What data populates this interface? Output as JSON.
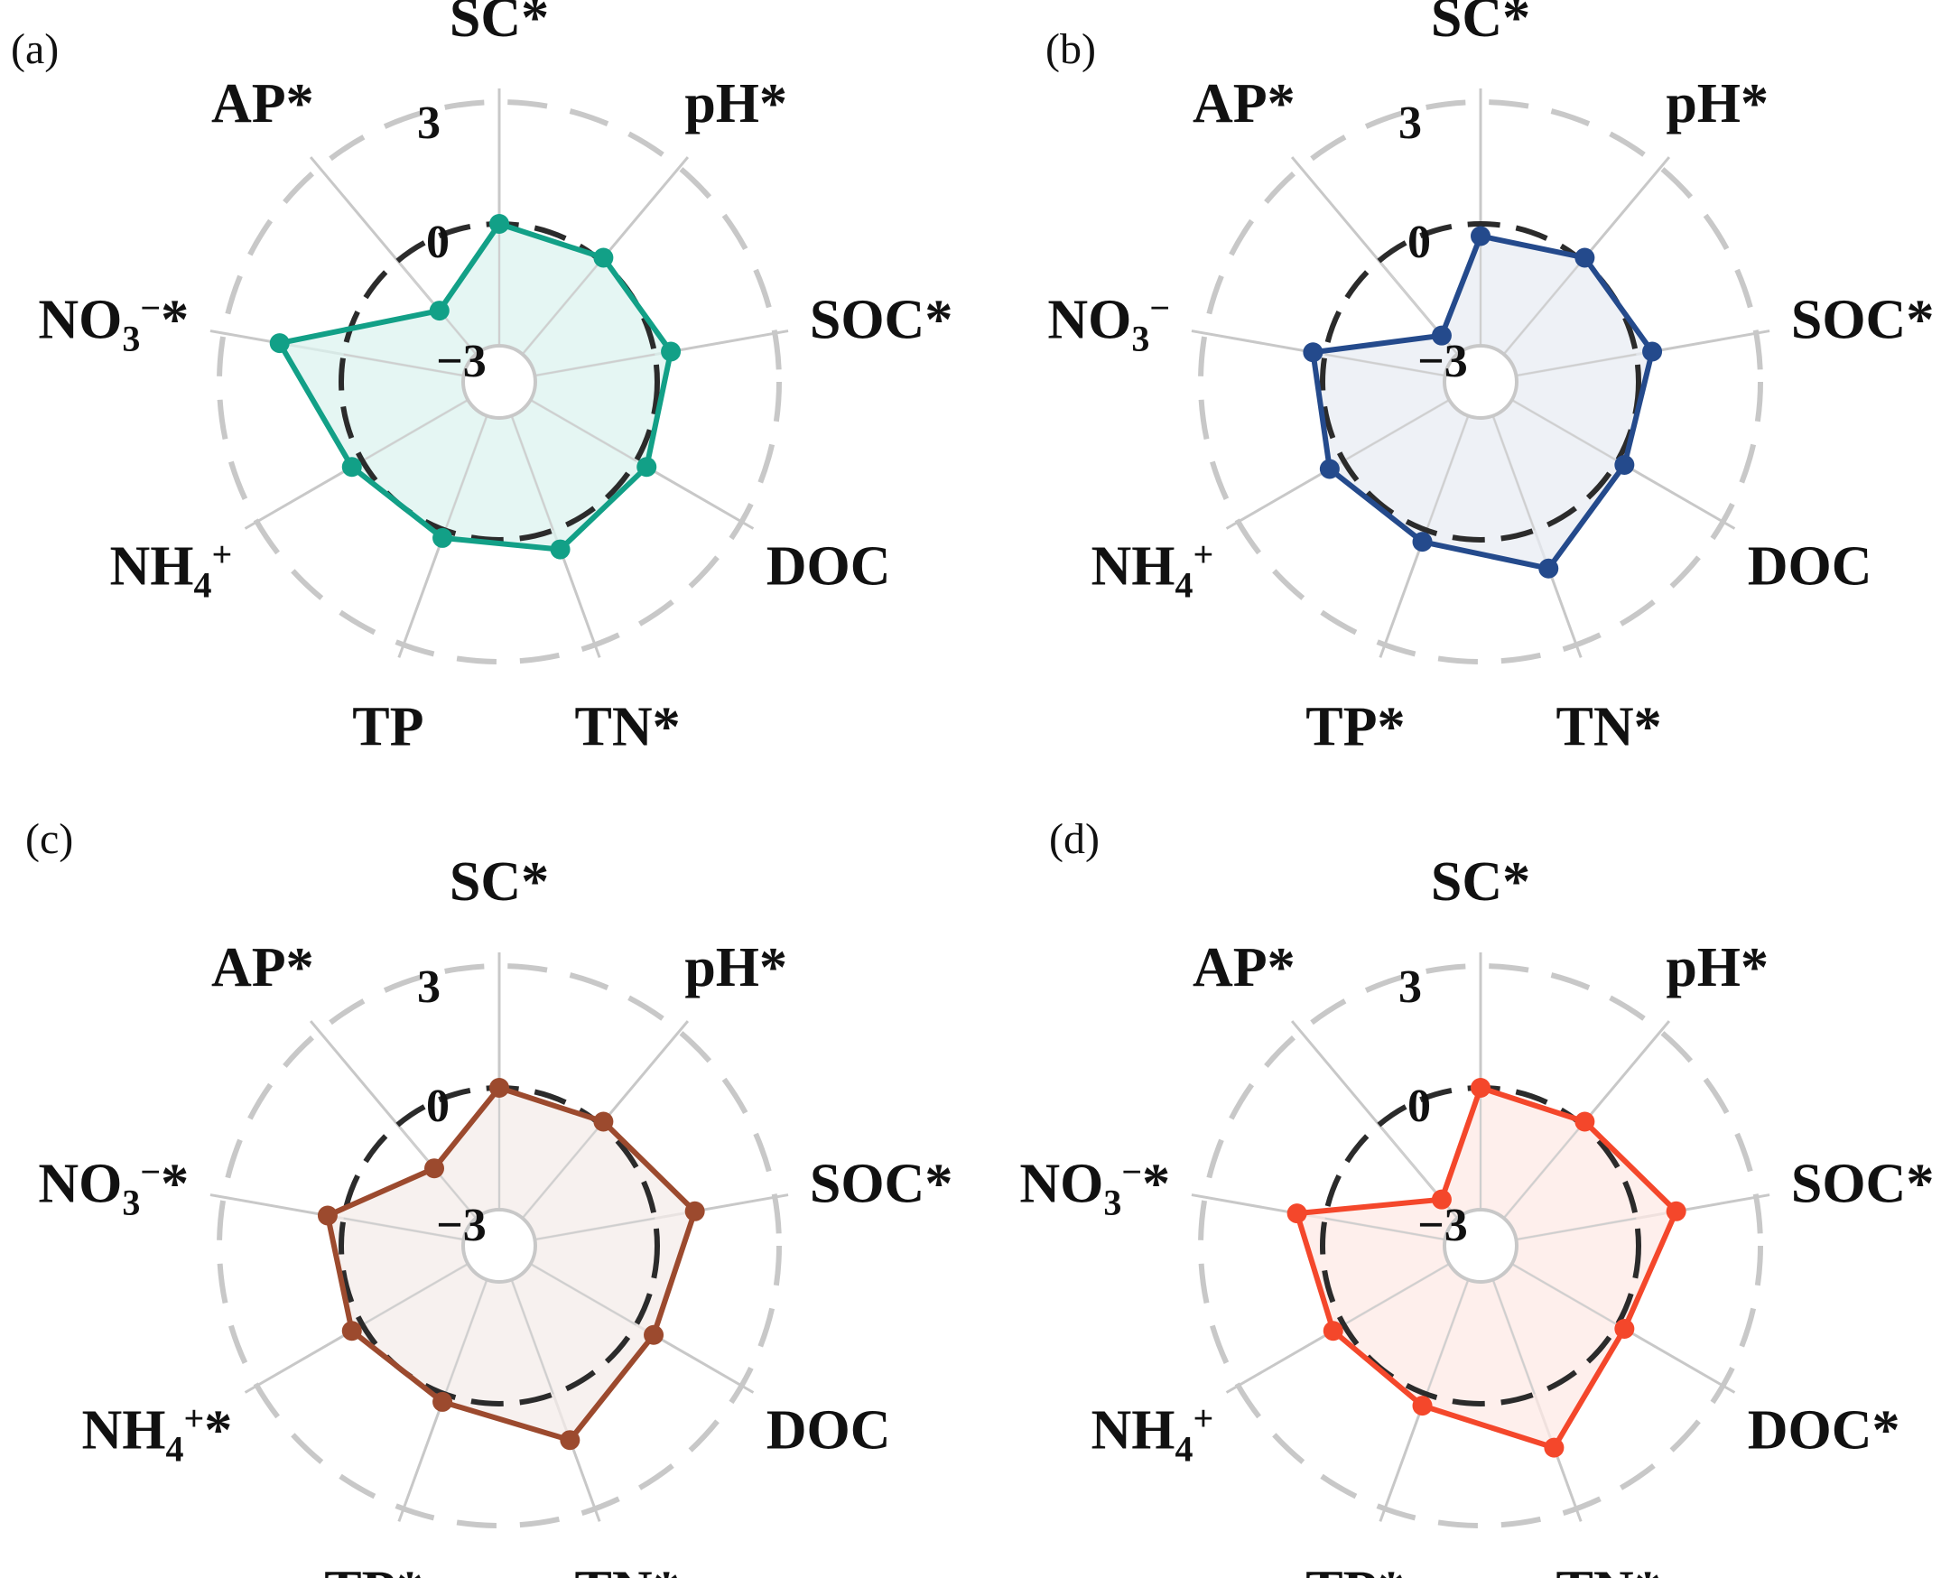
{
  "chart_data": [
    {
      "type": "radar",
      "panel_label": "(a)",
      "color": "#12a087",
      "fill": "#dcf3ef",
      "axes": [
        "SC*",
        "pH*",
        "SOC*",
        "DOC",
        "TN*",
        "TP",
        "NH4+",
        "NO3−*",
        "AP*"
      ],
      "ring_labels": [
        "3",
        "0",
        "−3"
      ],
      "rlim": [
        -3,
        3
      ],
      "values": [
        0.0,
        0.1,
        0.4,
        0.3,
        0.5,
        0.2,
        0.3,
        1.6,
        -1.6
      ]
    },
    {
      "type": "radar",
      "panel_label": "(b)",
      "color": "#244a8c",
      "fill": "#e8ecf3",
      "axes": [
        "SC*",
        "pH*",
        "SOC*",
        "DOC",
        "TN*",
        "TP*",
        "NH4+",
        "NO3−",
        "AP*"
      ],
      "ring_labels": [
        "3",
        "0",
        "−3"
      ],
      "rlim": [
        -3,
        3
      ],
      "values": [
        -0.3,
        0.1,
        0.4,
        0.2,
        1.0,
        0.3,
        0.4,
        0.3,
        -2.4
      ]
    },
    {
      "type": "radar",
      "panel_label": "(c)",
      "color": "#9c4a2e",
      "fill": "#f4ece9",
      "axes": [
        "SC*",
        "pH*",
        "SOC*",
        "DOC",
        "TN*",
        "TP*",
        "NH4+*",
        "NO3−*",
        "AP*"
      ],
      "ring_labels": [
        "3",
        "0",
        "−3"
      ],
      "rlim": [
        -3,
        3
      ],
      "values": [
        0.0,
        0.1,
        1.0,
        0.5,
        1.2,
        0.2,
        0.3,
        0.4,
        -1.4
      ]
    },
    {
      "type": "radar",
      "panel_label": "(d)",
      "color": "#f4472b",
      "fill": "#feeae6",
      "axes": [
        "SC*",
        "pH*",
        "SOC*",
        "DOC*",
        "TN*",
        "TP*",
        "NH4+",
        "NO3−*",
        "AP*"
      ],
      "ring_labels": [
        "3",
        "0",
        "−3"
      ],
      "rlim": [
        -3,
        3
      ],
      "values": [
        0.0,
        0.1,
        1.0,
        0.2,
        1.4,
        0.3,
        0.3,
        0.7,
        -2.4
      ]
    }
  ]
}
